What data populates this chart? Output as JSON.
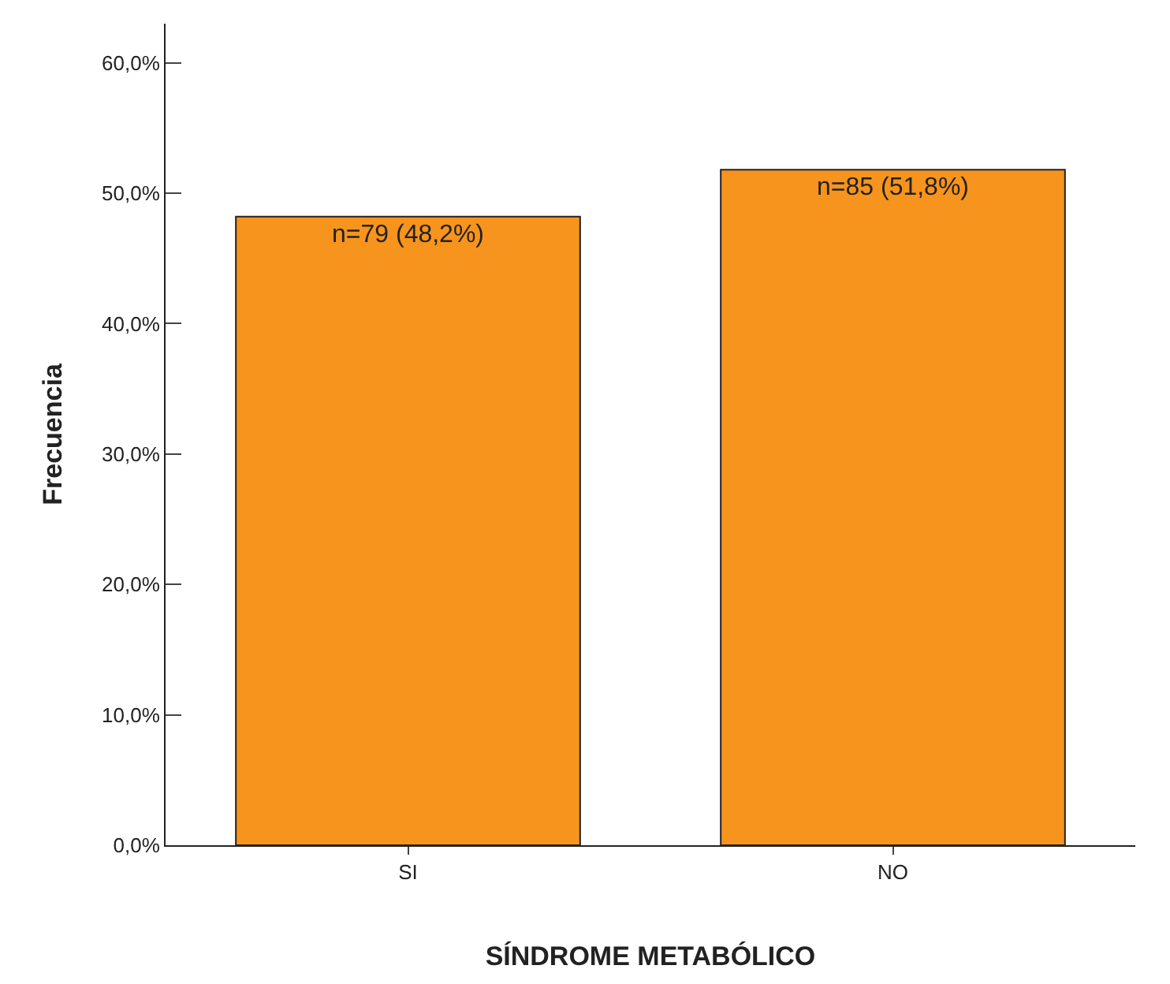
{
  "chart_data": {
    "type": "bar",
    "xlabel": "SÍNDROME METABÓLICO",
    "ylabel": "Frecuencia",
    "categories": [
      "SI",
      "NO"
    ],
    "values": [
      48.2,
      51.8
    ],
    "value_labels": [
      "n=79 (48,2%)",
      "n=85 (51,8%)"
    ],
    "color": "#f7941d",
    "ylim": [
      0,
      63
    ],
    "yticks": [
      {
        "value": 0,
        "label": "0,0%"
      },
      {
        "value": 10,
        "label": "10,0%"
      },
      {
        "value": 20,
        "label": "20,0%"
      },
      {
        "value": 30,
        "label": "30,0%"
      },
      {
        "value": 40,
        "label": "40,0%"
      },
      {
        "value": 50,
        "label": "50,0%"
      },
      {
        "value": 60,
        "label": "60,0%"
      }
    ],
    "legend": false
  }
}
